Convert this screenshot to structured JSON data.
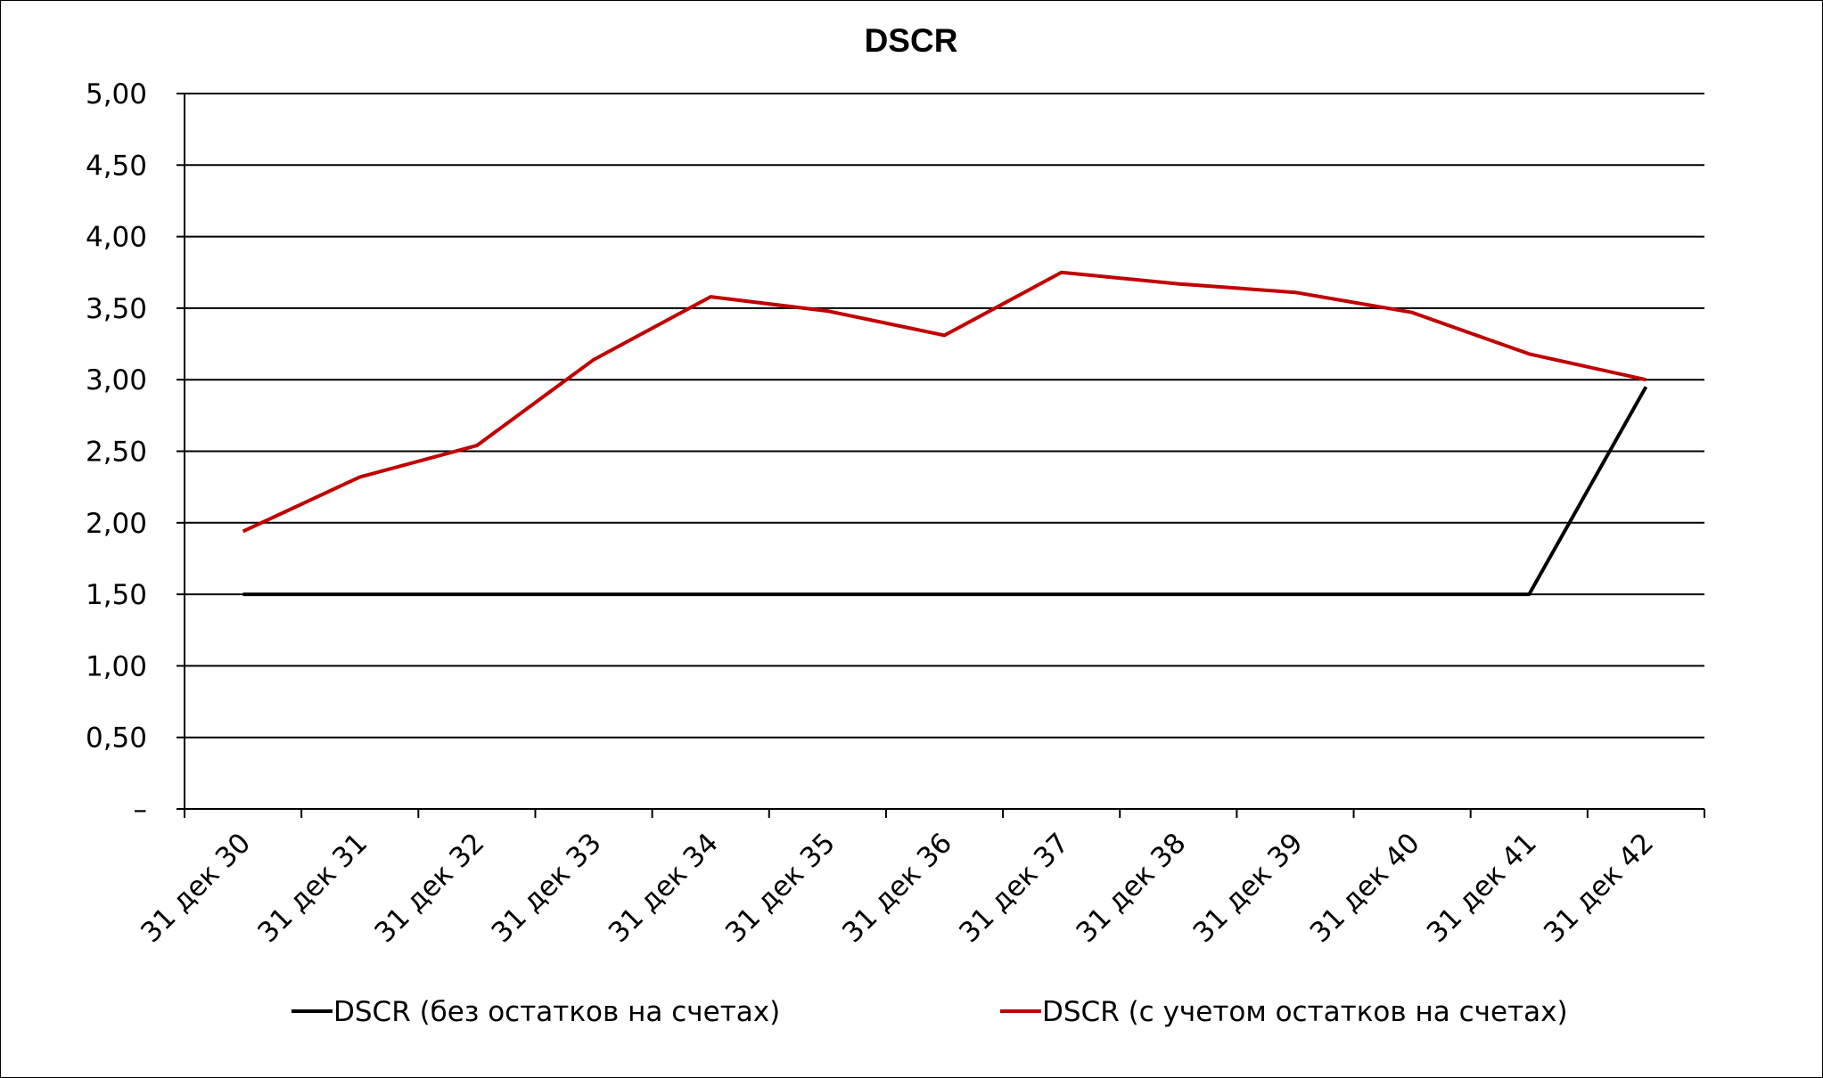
{
  "chart_data": {
    "type": "line",
    "title": "DSCR",
    "xlabel": "",
    "ylabel": "",
    "categories": [
      "31 дек 30",
      "31 дек 31",
      "31 дек 32",
      "31 дек 33",
      "31 дек 34",
      "31 дек 35",
      "31 дек 36",
      "31 дек 37",
      "31 дек 38",
      "31 дек 39",
      "31 дек 40",
      "31 дек 41",
      "31 дек 42"
    ],
    "ylim": [
      0,
      5
    ],
    "yticks": [
      {
        "value": 0,
        "label": "–"
      },
      {
        "value": 0.5,
        "label": "0,50"
      },
      {
        "value": 1.0,
        "label": "1,00"
      },
      {
        "value": 1.5,
        "label": "1,50"
      },
      {
        "value": 2.0,
        "label": "2,00"
      },
      {
        "value": 2.5,
        "label": "2,50"
      },
      {
        "value": 3.0,
        "label": "3,00"
      },
      {
        "value": 3.5,
        "label": "3,50"
      },
      {
        "value": 4.0,
        "label": "4,00"
      },
      {
        "value": 4.5,
        "label": "4,50"
      },
      {
        "value": 5.0,
        "label": "5,00"
      }
    ],
    "grid": true,
    "legend_position": "bottom",
    "series": [
      {
        "name": "DSCR (без остатков на счетах)",
        "color": "#000000",
        "values": [
          1.5,
          1.5,
          1.5,
          1.5,
          1.5,
          1.5,
          1.5,
          1.5,
          1.5,
          1.5,
          1.5,
          1.5,
          2.95
        ]
      },
      {
        "name": "DSCR (с учетом остатков на счетах)",
        "color": "#C00000",
        "values": [
          1.94,
          2.32,
          2.54,
          3.14,
          3.58,
          3.48,
          3.31,
          3.75,
          3.67,
          3.61,
          3.47,
          3.18,
          3.0
        ]
      }
    ]
  }
}
